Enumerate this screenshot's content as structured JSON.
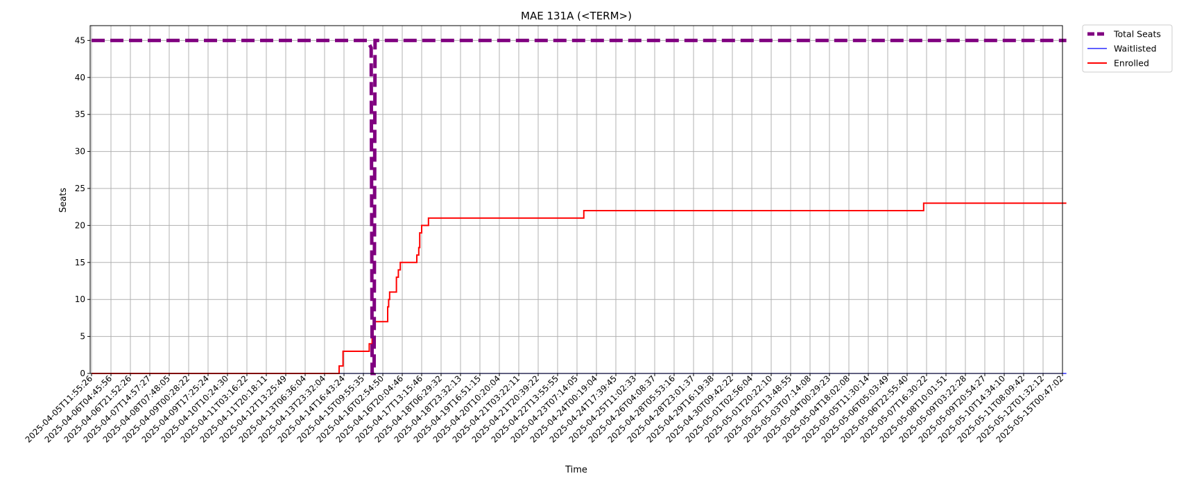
{
  "chart_data": {
    "type": "line",
    "title": "MAE 131A (<TERM>)",
    "xlabel": "Time",
    "ylabel": "Seats",
    "ylim": [
      0,
      47
    ],
    "yticks": [
      0,
      5,
      10,
      15,
      20,
      25,
      30,
      35,
      40,
      45
    ],
    "grid": true,
    "legend_position": "outside-top-right",
    "x_categories": [
      "2025-04-05T11:55:26",
      "2025-04-06T04:45:56",
      "2025-04-06T21:52:26",
      "2025-04-07T14:57:27",
      "2025-04-08T07:48:05",
      "2025-04-09T00:28:22",
      "2025-04-09T17:25:24",
      "2025-04-10T10:24:30",
      "2025-04-11T03:16:22",
      "2025-04-11T20:18:11",
      "2025-04-12T13:25:49",
      "2025-04-13T06:36:04",
      "2025-04-13T23:32:04",
      "2025-04-14T16:43:24",
      "2025-04-15T09:55:35",
      "2025-04-16T02:54:50",
      "2025-04-16T20:04:46",
      "2025-04-17T13:15:46",
      "2025-04-18T06:29:32",
      "2025-04-18T23:32:13",
      "2025-04-19T16:51:15",
      "2025-04-20T10:20:04",
      "2025-04-21T03:22:11",
      "2025-04-21T20:39:22",
      "2025-04-22T13:55:55",
      "2025-04-23T07:14:05",
      "2025-04-24T00:19:04",
      "2025-04-24T17:39:45",
      "2025-04-25T11:02:33",
      "2025-04-26T04:08:37",
      "2025-04-28T05:53:16",
      "2025-04-28T23:01:37",
      "2025-04-29T16:19:38",
      "2025-04-30T09:42:22",
      "2025-05-01T02:56:04",
      "2025-05-01T20:22:10",
      "2025-05-02T13:48:55",
      "2025-05-03T07:14:08",
      "2025-05-04T00:29:23",
      "2025-05-04T18:02:08",
      "2025-05-05T11:30:14",
      "2025-05-06T05:03:49",
      "2025-05-06T22:55:40",
      "2025-05-07T16:30:22",
      "2025-05-08T10:01:51",
      "2025-05-09T03:22:28",
      "2025-05-09T20:54:27",
      "2025-05-10T14:34:10",
      "2025-05-11T08:09:42",
      "2025-05-12T01:32:12",
      "2025-05-15T00:47:02"
    ],
    "series": [
      {
        "name": "Total Seats",
        "color": "#800080",
        "style": "dashed",
        "points": [
          [
            0,
            45
          ],
          [
            14.2,
            45
          ],
          [
            14.4,
            44
          ],
          [
            14.45,
            0
          ],
          [
            14.55,
            0
          ],
          [
            14.6,
            45
          ],
          [
            50.2,
            45
          ]
        ]
      },
      {
        "name": "Waitlisted",
        "color": "#0000ff",
        "style": "solid",
        "points": [
          [
            0,
            0
          ],
          [
            50.2,
            0
          ]
        ]
      },
      {
        "name": "Enrolled",
        "color": "#ff0000",
        "style": "step",
        "points": [
          [
            0,
            0
          ],
          [
            12.75,
            0
          ],
          [
            12.75,
            1
          ],
          [
            12.95,
            1
          ],
          [
            12.95,
            3
          ],
          [
            14.3,
            3
          ],
          [
            14.3,
            4
          ],
          [
            14.45,
            4
          ],
          [
            14.45,
            5
          ],
          [
            14.5,
            5
          ],
          [
            14.5,
            6
          ],
          [
            14.55,
            6
          ],
          [
            14.55,
            7
          ],
          [
            15.25,
            7
          ],
          [
            15.25,
            9
          ],
          [
            15.3,
            9
          ],
          [
            15.3,
            10
          ],
          [
            15.35,
            10
          ],
          [
            15.35,
            11
          ],
          [
            15.7,
            11
          ],
          [
            15.7,
            13
          ],
          [
            15.8,
            13
          ],
          [
            15.8,
            14
          ],
          [
            15.9,
            14
          ],
          [
            15.9,
            15
          ],
          [
            16.75,
            15
          ],
          [
            16.75,
            16
          ],
          [
            16.85,
            16
          ],
          [
            16.85,
            17
          ],
          [
            16.9,
            17
          ],
          [
            16.9,
            19
          ],
          [
            17.0,
            19
          ],
          [
            17.0,
            20
          ],
          [
            17.35,
            20
          ],
          [
            17.35,
            21
          ],
          [
            25.35,
            21
          ],
          [
            25.35,
            22
          ],
          [
            42.85,
            22
          ],
          [
            42.85,
            23
          ],
          [
            50.2,
            23
          ]
        ]
      }
    ]
  }
}
